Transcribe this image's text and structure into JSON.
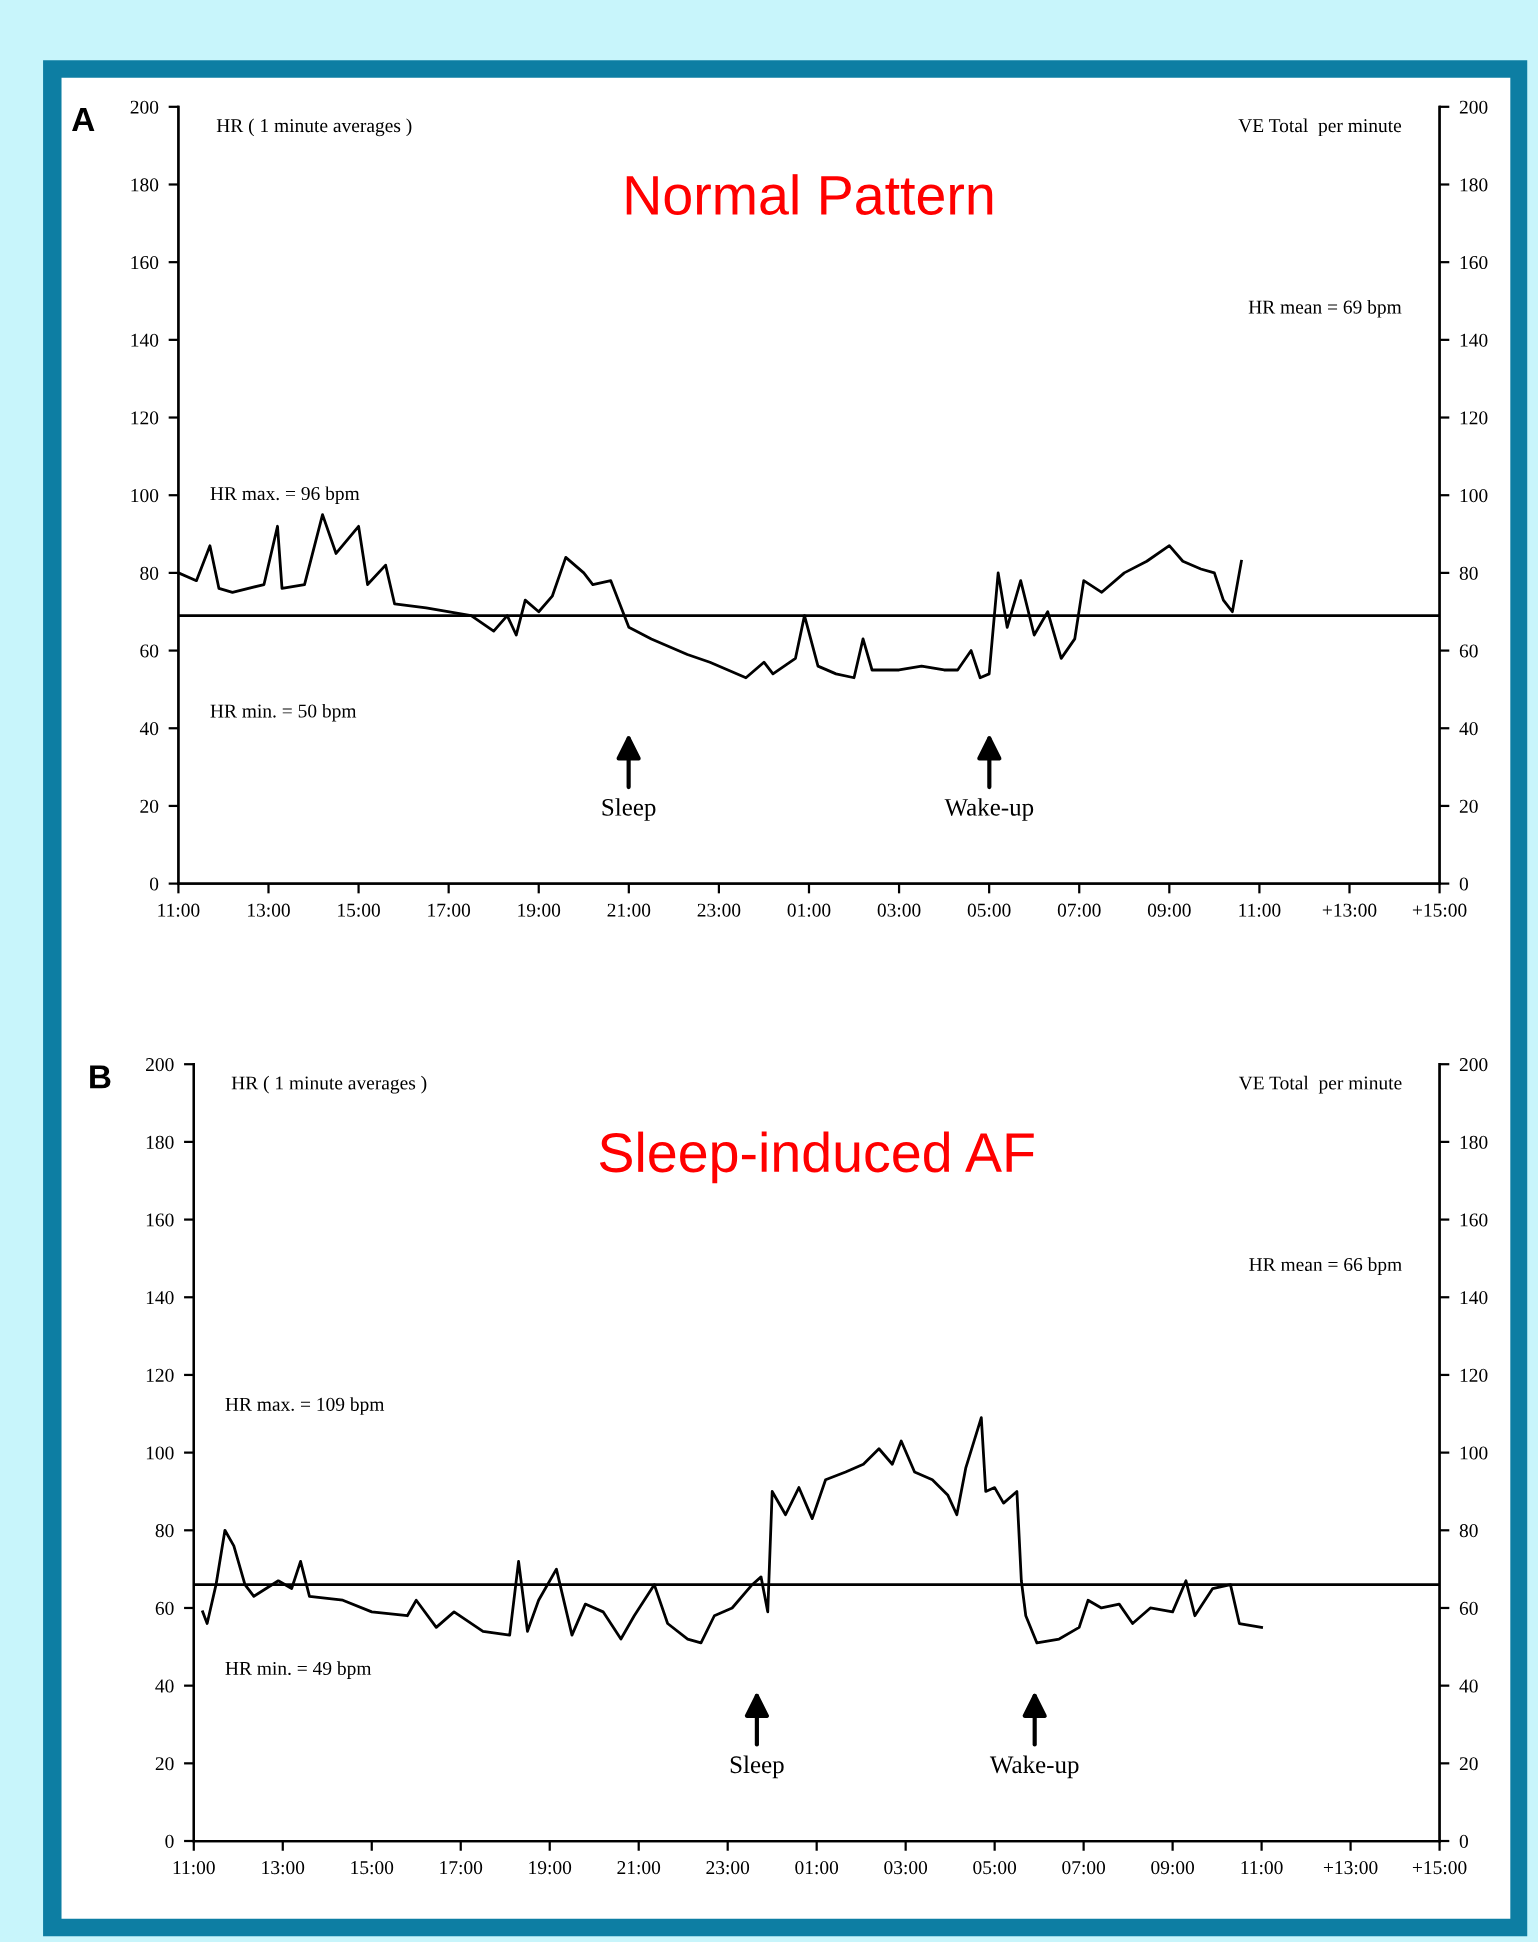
{
  "chart_data": [
    {
      "type": "line",
      "title": "Normal Pattern",
      "ylabel": "HR ( 1 minute averages )",
      "y2label": "VE Total  per minute",
      "annotations": [
        "A",
        "HR max. = 96 bpm",
        "HR min. = 50 bpm",
        "Sleep",
        "Wake-up"
      ],
      "ref_lines": [
        {
          "axis": "y",
          "value": 69,
          "label": "HR mean = 69 bpm",
          "color": "#000000",
          "line_style": "solid"
        }
      ],
      "xlim": [
        "2000-01-01T11:00",
        "2000-01-02T15:00"
      ],
      "xticks": [
        {
          "value": "2000-01-01T11:00",
          "label": "11:00"
        },
        {
          "value": "2000-01-01T13:00",
          "label": "13:00"
        },
        {
          "value": "2000-01-01T15:00",
          "label": "15:00"
        },
        {
          "value": "2000-01-01T17:00",
          "label": "17:00"
        },
        {
          "value": "2000-01-01T19:00",
          "label": "19:00"
        },
        {
          "value": "2000-01-01T21:00",
          "label": "21:00"
        },
        {
          "value": "2000-01-01T23:00",
          "label": "23:00"
        },
        {
          "value": "2000-01-02T01:00",
          "label": "01:00"
        },
        {
          "value": "2000-01-02T03:00",
          "label": "03:00"
        },
        {
          "value": "2000-01-02T05:00",
          "label": "05:00"
        },
        {
          "value": "2000-01-02T07:00",
          "label": "07:00"
        },
        {
          "value": "2000-01-02T09:00",
          "label": "09:00"
        },
        {
          "value": "2000-01-02T11:00",
          "label": "11:00"
        },
        {
          "value": "2000-01-02T13:00",
          "label": "+13:00"
        },
        {
          "value": "2000-01-02T15:00",
          "label": "+15:00"
        }
      ],
      "ylim": [
        0,
        200
      ],
      "yticks": [
        0,
        20,
        40,
        60,
        80,
        100,
        120,
        140,
        160,
        180,
        200
      ],
      "y2lim": [
        0,
        200
      ],
      "y2ticks": [
        0,
        20,
        40,
        60,
        80,
        100,
        120,
        140,
        160,
        180,
        200
      ],
      "grid": false,
      "legend": false,
      "marker": "none",
      "line_style": "solid",
      "series": [
        {
          "color": "#000000",
          "x": [
            "2000-01-01T11:00",
            "2000-01-01T11:24",
            "2000-01-01T11:42",
            "2000-01-01T11:54",
            "2000-01-01T12:12",
            "2000-01-01T12:54",
            "2000-01-01T13:12",
            "2000-01-01T13:18",
            "2000-01-01T13:48",
            "2000-01-01T14:12",
            "2000-01-01T14:30",
            "2000-01-01T15:00",
            "2000-01-01T15:12",
            "2000-01-01T15:36",
            "2000-01-01T15:48",
            "2000-01-01T16:30",
            "2000-01-01T17:30",
            "2000-01-01T18:00",
            "2000-01-01T18:18",
            "2000-01-01T18:30",
            "2000-01-01T18:42",
            "2000-01-01T19:00",
            "2000-01-01T19:18",
            "2000-01-01T19:36",
            "2000-01-01T20:00",
            "2000-01-01T20:12",
            "2000-01-01T20:36",
            "2000-01-01T21:00",
            "2000-01-01T21:30",
            "2000-01-01T21:54",
            "2000-01-01T22:18",
            "2000-01-01T22:48",
            "2000-01-01T23:12",
            "2000-01-01T23:36",
            "2000-01-02T00:00",
            "2000-01-02T00:12",
            "2000-01-02T00:42",
            "2000-01-02T00:54",
            "2000-01-02T01:12",
            "2000-01-02T01:36",
            "2000-01-02T02:00",
            "2000-01-02T02:12",
            "2000-01-02T02:24",
            "2000-01-02T03:00",
            "2000-01-02T03:30",
            "2000-01-02T04:00",
            "2000-01-02T04:18",
            "2000-01-02T04:36",
            "2000-01-02T04:48",
            "2000-01-02T05:00",
            "2000-01-02T05:12",
            "2000-01-02T05:24",
            "2000-01-02T05:42",
            "2000-01-02T06:00",
            "2000-01-02T06:18",
            "2000-01-02T06:36",
            "2000-01-02T06:54",
            "2000-01-02T07:06",
            "2000-01-02T07:30",
            "2000-01-02T08:00",
            "2000-01-02T08:30",
            "2000-01-02T09:00",
            "2000-01-02T09:18",
            "2000-01-02T09:42",
            "2000-01-02T10:00",
            "2000-01-02T10:12",
            "2000-01-02T10:24",
            "2000-01-02T10:36"
          ],
          "values": [
            80,
            78,
            87,
            76,
            75,
            77,
            92,
            76,
            77,
            95,
            85,
            92,
            77,
            82,
            72,
            71,
            69,
            65,
            69,
            64,
            73,
            70,
            74,
            84,
            80,
            77,
            78,
            66,
            63,
            61,
            59,
            57,
            55,
            53,
            57,
            54,
            58,
            69,
            56,
            54,
            53,
            63,
            55,
            55,
            56,
            55,
            55,
            60,
            53,
            54,
            80,
            66,
            78,
            64,
            70,
            58,
            63,
            78,
            75,
            80,
            83,
            87,
            83,
            81,
            80,
            73,
            70,
            83
          ]
        }
      ]
    },
    {
      "type": "line",
      "title": "Sleep-induced AF",
      "ylabel": "HR ( 1 minute averages )",
      "y2label": "VE Total  per minute",
      "annotations": [
        "B",
        "HR max. = 109 bpm",
        "HR min. = 49 bpm",
        "Sleep",
        "Wake-up"
      ],
      "ref_lines": [
        {
          "axis": "y",
          "value": 66,
          "label": "HR mean = 66 bpm",
          "color": "#000000",
          "line_style": "solid"
        }
      ],
      "xlim": [
        "2000-01-01T11:00",
        "2000-01-02T15:00"
      ],
      "xticks": [
        {
          "value": "2000-01-01T11:00",
          "label": "11:00"
        },
        {
          "value": "2000-01-01T13:00",
          "label": "13:00"
        },
        {
          "value": "2000-01-01T15:00",
          "label": "15:00"
        },
        {
          "value": "2000-01-01T17:00",
          "label": "17:00"
        },
        {
          "value": "2000-01-01T19:00",
          "label": "19:00"
        },
        {
          "value": "2000-01-01T21:00",
          "label": "21:00"
        },
        {
          "value": "2000-01-01T23:00",
          "label": "23:00"
        },
        {
          "value": "2000-01-02T01:00",
          "label": "01:00"
        },
        {
          "value": "2000-01-02T03:00",
          "label": "03:00"
        },
        {
          "value": "2000-01-02T05:00",
          "label": "05:00"
        },
        {
          "value": "2000-01-02T07:00",
          "label": "07:00"
        },
        {
          "value": "2000-01-02T09:00",
          "label": "09:00"
        },
        {
          "value": "2000-01-02T11:00",
          "label": "11:00"
        },
        {
          "value": "2000-01-02T13:00",
          "label": "+13:00"
        },
        {
          "value": "2000-01-02T15:00",
          "label": "+15:00"
        }
      ],
      "ylim": [
        0,
        200
      ],
      "yticks": [
        0,
        20,
        40,
        60,
        80,
        100,
        120,
        140,
        160,
        180,
        200
      ],
      "y2lim": [
        0,
        200
      ],
      "y2ticks": [
        0,
        20,
        40,
        60,
        80,
        100,
        120,
        140,
        160,
        180,
        200
      ],
      "grid": false,
      "legend": false,
      "marker": "none",
      "line_style": "solid",
      "series": [
        {
          "color": "#000000",
          "x": [
            "2000-01-01T11:12",
            "2000-01-01T11:18",
            "2000-01-01T11:30",
            "2000-01-01T11:42",
            "2000-01-01T11:54",
            "2000-01-01T12:09",
            "2000-01-01T12:21",
            "2000-01-01T12:54",
            "2000-01-01T13:12",
            "2000-01-01T13:24",
            "2000-01-01T13:36",
            "2000-01-01T14:21",
            "2000-01-01T15:00",
            "2000-01-01T15:48",
            "2000-01-01T16:00",
            "2000-01-01T16:27",
            "2000-01-01T16:51",
            "2000-01-01T17:30",
            "2000-01-01T18:06",
            "2000-01-01T18:18",
            "2000-01-01T18:30",
            "2000-01-01T18:45",
            "2000-01-01T19:09",
            "2000-01-01T19:30",
            "2000-01-01T19:48",
            "2000-01-01T20:12",
            "2000-01-01T20:36",
            "2000-01-01T20:54",
            "2000-01-01T21:21",
            "2000-01-01T21:39",
            "2000-01-01T22:06",
            "2000-01-01T22:24",
            "2000-01-01T22:42",
            "2000-01-01T23:06",
            "2000-01-01T23:33",
            "2000-01-01T23:45",
            "2000-01-01T23:54",
            "2000-01-02T00:00",
            "2000-01-02T00:18",
            "2000-01-02T00:36",
            "2000-01-02T00:54",
            "2000-01-02T01:12",
            "2000-01-02T01:39",
            "2000-01-02T02:03",
            "2000-01-02T02:24",
            "2000-01-02T02:42",
            "2000-01-02T02:54",
            "2000-01-02T03:12",
            "2000-01-02T03:36",
            "2000-01-02T03:57",
            "2000-01-02T04:09",
            "2000-01-02T04:21",
            "2000-01-02T04:42",
            "2000-01-02T04:48",
            "2000-01-02T05:00",
            "2000-01-02T05:12",
            "2000-01-02T05:30",
            "2000-01-02T05:36",
            "2000-01-02T05:42",
            "2000-01-02T05:57",
            "2000-01-02T06:27",
            "2000-01-02T06:54",
            "2000-01-02T07:06",
            "2000-01-02T07:24",
            "2000-01-02T07:48",
            "2000-01-02T08:06",
            "2000-01-02T08:30",
            "2000-01-02T09:00",
            "2000-01-02T09:18",
            "2000-01-02T09:30",
            "2000-01-02T09:54",
            "2000-01-02T10:18",
            "2000-01-02T10:30",
            "2000-01-02T11:00"
          ],
          "values": [
            59,
            56,
            66,
            80,
            76,
            66,
            63,
            67,
            65,
            72,
            63,
            62,
            59,
            58,
            62,
            55,
            59,
            54,
            53,
            72,
            54,
            62,
            70,
            53,
            61,
            59,
            52,
            58,
            66,
            56,
            52,
            51,
            58,
            60,
            66,
            68,
            59,
            90,
            84,
            91,
            83,
            93,
            95,
            97,
            101,
            97,
            103,
            95,
            93,
            89,
            84,
            96,
            109,
            90,
            91,
            87,
            90,
            67,
            58,
            51,
            52,
            55,
            62,
            60,
            61,
            56,
            60,
            59,
            67,
            58,
            65,
            66,
            56,
            55
          ]
        }
      ]
    }
  ]
}
